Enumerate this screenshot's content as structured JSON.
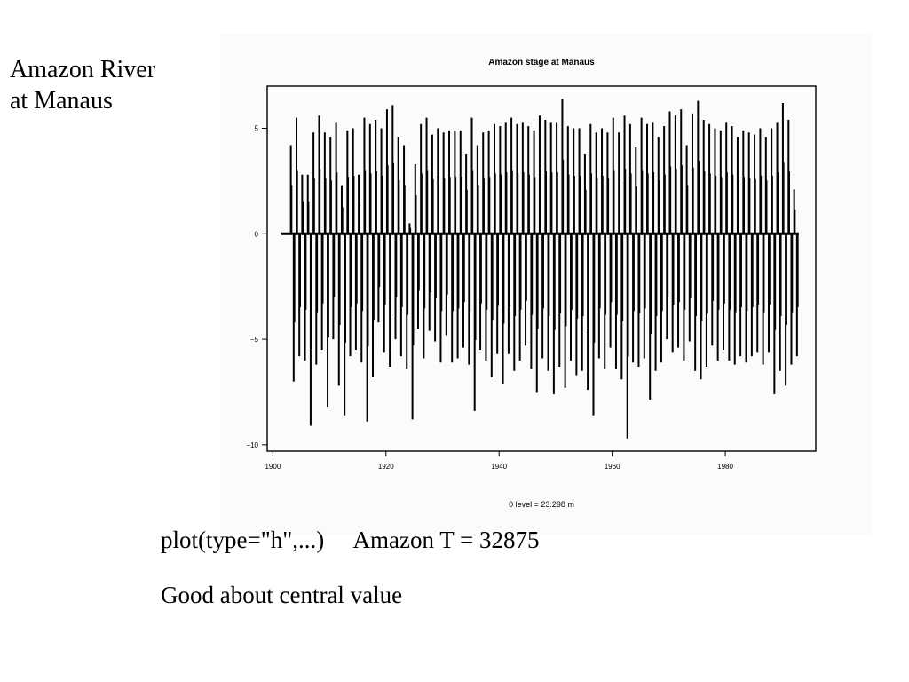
{
  "slide": {
    "title_lines": [
      "Amazon River",
      "at Manaus"
    ],
    "caption_command": "plot(type=\"h\",...)",
    "caption_stat": "Amazon T = 32875",
    "caption_note": "Good about central value"
  },
  "chart_data": {
    "type": "bar",
    "style": "vertical spikes from zero (type=\"h\")",
    "title": "Amazon stage at Manaus",
    "xlabel": "0 level = 23.298 m",
    "ylabel": "",
    "xlim": [
      1899,
      1996
    ],
    "ylim": [
      -10.3,
      7.0
    ],
    "x_ticks": [
      1900,
      1920,
      1940,
      1960,
      1980
    ],
    "y_ticks": [
      5,
      0,
      -5,
      -10
    ],
    "y_tick_labels": [
      "5",
      "0",
      "−5",
      "−10"
    ],
    "grid": false,
    "legend": "none",
    "color": "#000000",
    "x": [
      1903,
      1904,
      1905,
      1906,
      1907,
      1908,
      1909,
      1910,
      1911,
      1912,
      1913,
      1914,
      1915,
      1916,
      1917,
      1918,
      1919,
      1920,
      1921,
      1922,
      1923,
      1924,
      1925,
      1926,
      1927,
      1928,
      1929,
      1930,
      1931,
      1932,
      1933,
      1934,
      1935,
      1936,
      1937,
      1938,
      1939,
      1940,
      1941,
      1942,
      1943,
      1944,
      1945,
      1946,
      1947,
      1948,
      1949,
      1950,
      1951,
      1952,
      1953,
      1954,
      1955,
      1956,
      1957,
      1958,
      1959,
      1960,
      1961,
      1962,
      1963,
      1964,
      1965,
      1966,
      1967,
      1968,
      1969,
      1970,
      1971,
      1972,
      1973,
      1974,
      1975,
      1976,
      1977,
      1978,
      1979,
      1980,
      1981,
      1982,
      1983,
      1984,
      1985,
      1986,
      1987,
      1988,
      1989,
      1990,
      1991,
      1992
    ],
    "high_stage": [
      4.2,
      5.5,
      2.8,
      2.8,
      4.8,
      5.6,
      4.8,
      4.6,
      5.3,
      2.3,
      4.9,
      5.0,
      2.8,
      5.5,
      5.2,
      5.4,
      5.0,
      5.9,
      6.1,
      4.6,
      4.2,
      0.5,
      3.3,
      5.2,
      5.5,
      4.7,
      5.0,
      4.8,
      4.9,
      4.9,
      4.9,
      3.8,
      5.5,
      4.2,
      4.8,
      4.9,
      5.2,
      5.1,
      5.3,
      5.5,
      5.2,
      5.3,
      5.1,
      4.9,
      5.6,
      5.4,
      5.3,
      5.3,
      6.4,
      5.1,
      5.0,
      5.0,
      3.8,
      5.2,
      4.8,
      5.0,
      4.8,
      5.5,
      4.8,
      5.6,
      5.2,
      4.1,
      5.5,
      5.2,
      5.3,
      4.6,
      5.1,
      5.8,
      5.6,
      5.9,
      4.2,
      5.7,
      6.3,
      5.4,
      5.2,
      5.0,
      4.9,
      5.3,
      5.1,
      4.6,
      4.9,
      4.8,
      4.7,
      5.0,
      4.6,
      5.0,
      5.3,
      6.2,
      5.4,
      2.1
    ],
    "low_stage": [
      -7.0,
      -5.8,
      -6.0,
      -9.1,
      -6.2,
      -5.5,
      -8.2,
      -5.0,
      -7.2,
      -8.6,
      -5.8,
      -5.5,
      -6.1,
      -8.9,
      -6.8,
      -4.2,
      -5.6,
      -6.3,
      -5.0,
      -5.8,
      -6.4,
      -8.8,
      -4.5,
      -5.9,
      -4.6,
      -5.1,
      -6.1,
      -4.8,
      -6.1,
      -5.9,
      -5.4,
      -6.2,
      -8.4,
      -5.5,
      -6.0,
      -6.8,
      -5.7,
      -7.1,
      -5.7,
      -6.5,
      -6.0,
      -5.3,
      -6.4,
      -7.5,
      -5.9,
      -6.5,
      -7.6,
      -6.3,
      -7.3,
      -6.0,
      -6.7,
      -6.5,
      -7.4,
      -8.6,
      -5.9,
      -6.4,
      -5.4,
      -6.4,
      -6.9,
      -9.7,
      -6.1,
      -6.3,
      -5.9,
      -7.9,
      -6.5,
      -6.1,
      -5.0,
      -5.6,
      -5.4,
      -6.0,
      -5.1,
      -6.5,
      -6.9,
      -6.3,
      -5.3,
      -6.0,
      -5.5,
      -6.0,
      -6.2,
      -5.8,
      -6.1,
      -5.8,
      -5.6,
      -6.2,
      -5.6,
      -7.6,
      -6.5,
      -7.2,
      -6.2,
      -5.8
    ]
  }
}
